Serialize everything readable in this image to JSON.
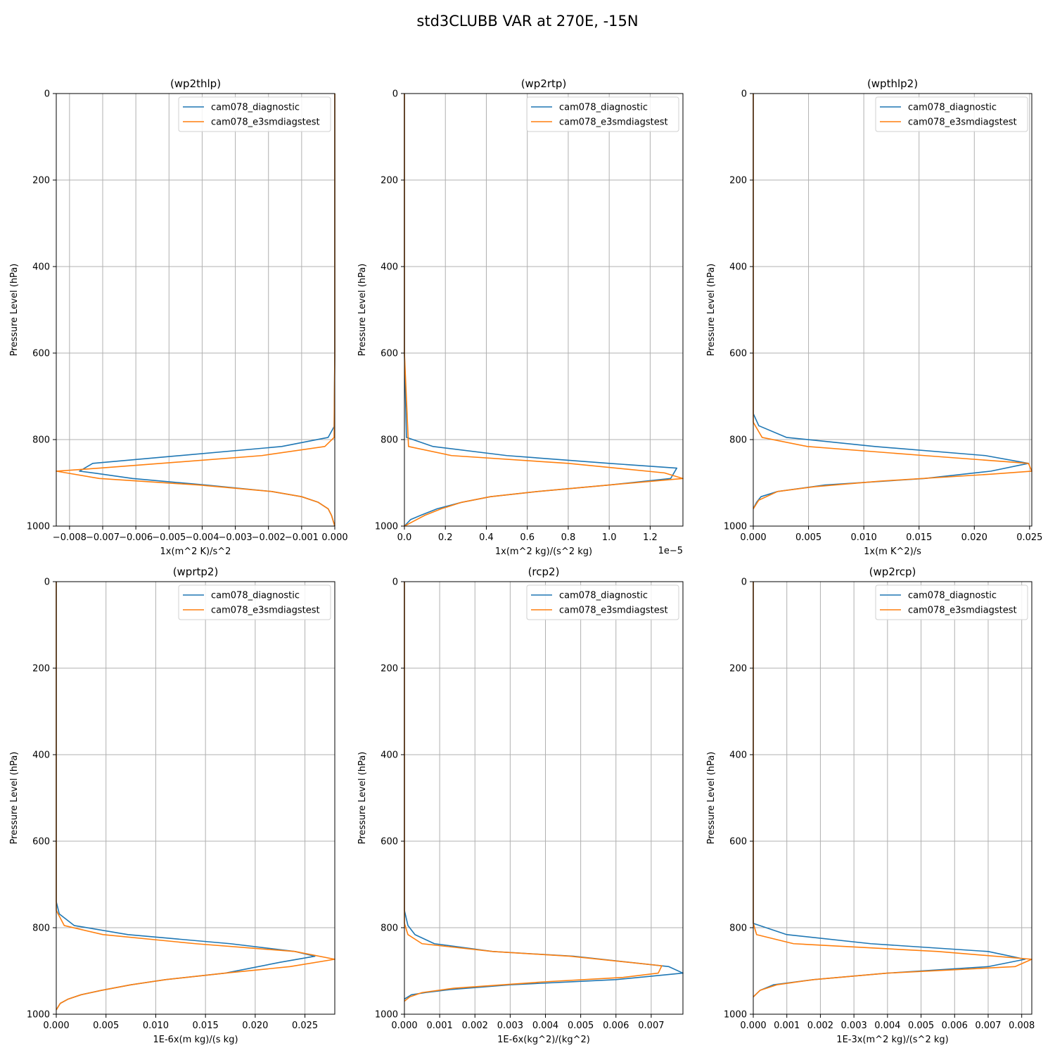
{
  "figure": {
    "title": "std3CLUBB VAR at 270E, -15N"
  },
  "style": {
    "series_colors": [
      "#1f77b4",
      "#ff7f0e"
    ],
    "grid_color": "#b0b0b0"
  },
  "chart_data": [
    {
      "type": "line",
      "title": "(wp2thlp)",
      "xlabel": "1x(m^2 K)/s^2",
      "ylabel": "Pressure Level (hPa)",
      "xlim": [
        -0.0084,
        0.0
      ],
      "ylim": [
        1000,
        0
      ],
      "y_inverted": true,
      "xticks": [
        -0.008,
        -0.007,
        -0.006,
        -0.005,
        -0.004,
        -0.003,
        -0.002,
        -0.001,
        0.0
      ],
      "xtick_labels": [
        "−0.008",
        "−0.007",
        "−0.006",
        "−0.005",
        "−0.004",
        "−0.003",
        "−0.002",
        "−0.001",
        "0.000"
      ],
      "yticks": [
        0,
        200,
        400,
        600,
        800,
        1000
      ],
      "ytick_labels": [
        "0",
        "200",
        "400",
        "600",
        "800",
        "1000"
      ],
      "offset_label": "",
      "legend": {
        "loc": "upper right"
      },
      "grid": true,
      "series": [
        {
          "name": "cam078_diagnostic",
          "x": [
            0,
            0,
            0,
            -2e-05,
            -0.0002,
            -0.0016,
            -0.0073,
            -0.0077,
            -0.0072,
            -0.0061,
            -0.0039,
            -0.0019,
            -0.001,
            -0.0005,
            -0.0002,
            -0.0001,
            0
          ],
          "y": [
            0,
            300,
            600,
            770,
            795,
            816,
            855,
            873,
            878,
            890,
            905,
            920,
            932,
            945,
            960,
            975,
            1000
          ]
        },
        {
          "name": "cam078_e3smdiagstest",
          "x": [
            0,
            0,
            0,
            -2e-05,
            -0.0003,
            -0.0022,
            -0.0071,
            -0.0084,
            -0.0071,
            -0.0041,
            -0.0019,
            -0.001,
            -0.0005,
            -0.0002,
            -0.0001,
            0
          ],
          "y": [
            0,
            300,
            600,
            795,
            816,
            837,
            866,
            873,
            890,
            905,
            920,
            932,
            945,
            960,
            975,
            1000
          ]
        }
      ]
    },
    {
      "type": "line",
      "title": "(wp2rtp)",
      "xlabel": "1x(m^2 kg)/(s^2 kg)",
      "ylabel": "Pressure Level (hPa)",
      "xlim": [
        0,
        1.36e-05
      ],
      "ylim": [
        1000,
        0
      ],
      "y_inverted": true,
      "xticks": [
        0,
        2e-06,
        4e-06,
        6e-06,
        8e-06,
        1e-05,
        1.2e-05
      ],
      "xtick_labels": [
        "0.0",
        "0.2",
        "0.4",
        "0.6",
        "0.8",
        "1.0",
        "1.2"
      ],
      "yticks": [
        0,
        200,
        400,
        600,
        800,
        1000
      ],
      "ytick_labels": [
        "0",
        "200",
        "400",
        "600",
        "800",
        "1000"
      ],
      "offset_label": "1e−5",
      "legend": {
        "loc": "upper right"
      },
      "grid": true,
      "series": [
        {
          "name": "cam078_diagnostic",
          "x": [
            0,
            0,
            0,
            1e-07,
            1.4e-06,
            5e-06,
            1e-05,
            1.33e-05,
            1.3e-05,
            1e-05,
            6.5e-06,
            4.2e-06,
            2.8e-06,
            1.6e-06,
            8e-07,
            3e-07,
            0
          ],
          "y": [
            0,
            300,
            600,
            795,
            816,
            837,
            855,
            866,
            890,
            905,
            920,
            932,
            945,
            960,
            975,
            985,
            1000
          ]
        },
        {
          "name": "cam078_e3smdiagstest",
          "x": [
            0,
            0,
            0,
            2e-07,
            2.3e-06,
            8e-06,
            1.27e-05,
            1.36e-05,
            1e-05,
            6.5e-06,
            4.2e-06,
            2.8e-06,
            1.8e-06,
            1e-06,
            4e-07,
            0
          ],
          "y": [
            0,
            300,
            600,
            816,
            837,
            855,
            877,
            890,
            905,
            920,
            932,
            945,
            960,
            975,
            990,
            1000
          ]
        }
      ]
    },
    {
      "type": "line",
      "title": "(wpthlp2)",
      "xlabel": "1x(m K^2)/s",
      "ylabel": "Pressure Level (hPa)",
      "xlim": [
        0,
        0.0252
      ],
      "ylim": [
        1000,
        0
      ],
      "y_inverted": true,
      "xticks": [
        0,
        0.005,
        0.01,
        0.015,
        0.02,
        0.025
      ],
      "xtick_labels": [
        "0.000",
        "0.005",
        "0.010",
        "0.015",
        "0.020",
        "0.025"
      ],
      "yticks": [
        0,
        200,
        400,
        600,
        800,
        1000
      ],
      "ytick_labels": [
        "0",
        "200",
        "400",
        "600",
        "800",
        "1000"
      ],
      "offset_label": "",
      "legend": {
        "loc": "upper right"
      },
      "grid": true,
      "series": [
        {
          "name": "cam078_diagnostic",
          "x": [
            0,
            0,
            0,
            0.0005,
            0.003,
            0.011,
            0.021,
            0.0249,
            0.0215,
            0.0155,
            0.0065,
            0.0022,
            0.0007,
            0.0003,
            0
          ],
          "y": [
            0,
            300,
            740,
            768,
            795,
            816,
            837,
            855,
            873,
            890,
            905,
            920,
            932,
            945,
            960
          ]
        },
        {
          "name": "cam078_e3smdiagstest",
          "x": [
            0,
            0,
            0,
            0.0008,
            0.0049,
            0.0155,
            0.0249,
            0.0252,
            0.0215,
            0.0115,
            0.0055,
            0.0022,
            0.0005,
            0
          ],
          "y": [
            0,
            300,
            760,
            795,
            816,
            837,
            855,
            873,
            880,
            896,
            909,
            920,
            940,
            960
          ]
        }
      ]
    },
    {
      "type": "line",
      "title": "(wprtp2)",
      "xlabel": "1E-6x(m kg)/(s kg)",
      "ylabel": "Pressure Level (hPa)",
      "xlim": [
        0,
        0.028
      ],
      "ylim": [
        1000,
        0
      ],
      "y_inverted": true,
      "xticks": [
        0,
        0.005,
        0.01,
        0.015,
        0.02,
        0.025
      ],
      "xtick_labels": [
        "0.000",
        "0.005",
        "0.010",
        "0.015",
        "0.020",
        "0.025"
      ],
      "yticks": [
        0,
        200,
        400,
        600,
        800,
        1000
      ],
      "ytick_labels": [
        "0",
        "200",
        "400",
        "600",
        "800",
        "1000"
      ],
      "offset_label": "",
      "legend": {
        "loc": "upper right"
      },
      "grid": true,
      "series": [
        {
          "name": "cam078_diagnostic",
          "x": [
            0,
            0,
            0,
            0.0003,
            0.0018,
            0.0072,
            0.0175,
            0.024,
            0.026,
            0.0225,
            0.017,
            0.011,
            0.0075,
            0.0045,
            0.0025,
            0.0012,
            0.0004,
            0
          ],
          "y": [
            0,
            300,
            740,
            768,
            795,
            816,
            837,
            855,
            866,
            880,
            905,
            920,
            932,
            945,
            955,
            965,
            975,
            990
          ]
        },
        {
          "name": "cam078_e3smdiagstest",
          "x": [
            0,
            0,
            0,
            0.0008,
            0.0047,
            0.014,
            0.024,
            0.028,
            0.0235,
            0.017,
            0.011,
            0.0075,
            0.0045,
            0.0025,
            0.0012,
            0.0004,
            0
          ],
          "y": [
            0,
            300,
            760,
            795,
            816,
            837,
            855,
            873,
            890,
            905,
            920,
            932,
            945,
            955,
            965,
            975,
            990
          ]
        }
      ]
    },
    {
      "type": "line",
      "title": "(rcp2)",
      "xlabel": "1E-6x(kg^2)/(kg^2)",
      "ylabel": "Pressure Level (hPa)",
      "xlim": [
        0,
        0.0079
      ],
      "ylim": [
        1000,
        0
      ],
      "y_inverted": true,
      "xticks": [
        0,
        0.001,
        0.002,
        0.003,
        0.004,
        0.005,
        0.006,
        0.007
      ],
      "xtick_labels": [
        "0.000",
        "0.001",
        "0.002",
        "0.003",
        "0.004",
        "0.005",
        "0.006",
        "0.007"
      ],
      "yticks": [
        0,
        200,
        400,
        600,
        800,
        1000
      ],
      "ytick_labels": [
        "0",
        "200",
        "400",
        "600",
        "800",
        "1000"
      ],
      "offset_label": "",
      "legend": {
        "loc": "upper right"
      },
      "grid": true,
      "series": [
        {
          "name": "cam078_diagnostic",
          "x": [
            0,
            0,
            0,
            0.0001,
            0.0003,
            0.00085,
            0.0025,
            0.0048,
            0.0075,
            0.0079,
            0.006,
            0.003,
            0.0013,
            0.0006,
            0.0002,
            0
          ],
          "y": [
            0,
            300,
            760,
            795,
            816,
            837,
            855,
            866,
            890,
            905,
            920,
            932,
            943,
            950,
            955,
            965
          ]
        },
        {
          "name": "cam078_e3smdiagstest",
          "x": [
            0,
            0,
            0,
            0.0001,
            0.0005,
            0.0025,
            0.0047,
            0.0073,
            0.0072,
            0.0062,
            0.004,
            0.0014,
            0.0005,
            0.00015,
            0
          ],
          "y": [
            0,
            300,
            790,
            816,
            837,
            855,
            866,
            888,
            905,
            915,
            925,
            940,
            950,
            960,
            970
          ]
        }
      ]
    },
    {
      "type": "line",
      "title": "(wp2rcp)",
      "xlabel": "1E-3x(m^2 kg)/(s^2 kg)",
      "ylabel": "Pressure Level (hPa)",
      "xlim": [
        0,
        0.0083
      ],
      "ylim": [
        1000,
        0
      ],
      "y_inverted": true,
      "xticks": [
        0,
        0.001,
        0.002,
        0.003,
        0.004,
        0.005,
        0.006,
        0.007,
        0.008
      ],
      "xtick_labels": [
        "0.000",
        "0.001",
        "0.002",
        "0.003",
        "0.004",
        "0.005",
        "0.006",
        "0.007",
        "0.008"
      ],
      "yticks": [
        0,
        200,
        400,
        600,
        800,
        1000
      ],
      "ytick_labels": [
        "0",
        "200",
        "400",
        "600",
        "800",
        "1000"
      ],
      "offset_label": "",
      "legend": {
        "loc": "upper right"
      },
      "grid": true,
      "series": [
        {
          "name": "cam078_diagnostic",
          "x": [
            0,
            0,
            0,
            0.001,
            0.0035,
            0.007,
            0.0081,
            0.007,
            0.004,
            0.0018,
            0.0006,
            0.0002,
            0
          ],
          "y": [
            0,
            300,
            790,
            816,
            837,
            855,
            873,
            890,
            905,
            920,
            932,
            945,
            960
          ]
        },
        {
          "name": "cam078_e3smdiagstest",
          "x": [
            0,
            0,
            0,
            0.0001,
            0.0012,
            0.0055,
            0.0083,
            0.0078,
            0.004,
            0.0018,
            0.0007,
            0.0002,
            0
          ],
          "y": [
            0,
            300,
            790,
            816,
            837,
            855,
            873,
            890,
            905,
            920,
            932,
            945,
            960
          ]
        }
      ]
    }
  ]
}
